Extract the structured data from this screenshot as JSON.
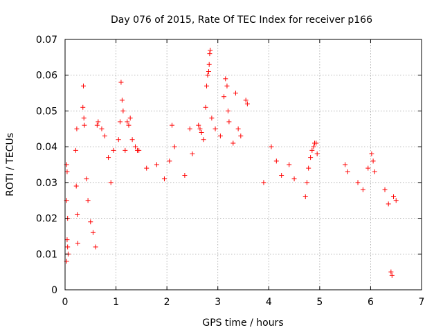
{
  "chart_data": {
    "type": "scatter",
    "title": "Day 076 of 2015, Rate Of TEC Index for receiver p166",
    "xlabel": "GPS time / hours",
    "ylabel": "ROTI / TECUs",
    "xlim": [
      0,
      7
    ],
    "ylim": [
      0,
      0.07
    ],
    "x_ticks": [
      "0",
      "1",
      "2",
      "3",
      "4",
      "5",
      "6",
      "7"
    ],
    "y_ticks": [
      "0",
      "0.01",
      "0.02",
      "0.03",
      "0.04",
      "0.05",
      "0.06",
      "0.07"
    ],
    "grid": true,
    "marker": "+",
    "color": "#ff0000",
    "series": [
      {
        "name": "ROTI",
        "points": [
          [
            0.03,
            0.035
          ],
          [
            0.04,
            0.033
          ],
          [
            0.03,
            0.025
          ],
          [
            0.05,
            0.02
          ],
          [
            0.04,
            0.014
          ],
          [
            0.05,
            0.012
          ],
          [
            0.03,
            0.008
          ],
          [
            0.06,
            0.01
          ],
          [
            0.21,
            0.039
          ],
          [
            0.23,
            0.045
          ],
          [
            0.22,
            0.029
          ],
          [
            0.24,
            0.021
          ],
          [
            0.25,
            0.013
          ],
          [
            0.36,
            0.057
          ],
          [
            0.35,
            0.051
          ],
          [
            0.38,
            0.046
          ],
          [
            0.37,
            0.048
          ],
          [
            0.42,
            0.031
          ],
          [
            0.45,
            0.025
          ],
          [
            0.5,
            0.019
          ],
          [
            0.55,
            0.016
          ],
          [
            0.6,
            0.012
          ],
          [
            0.63,
            0.046
          ],
          [
            0.65,
            0.047
          ],
          [
            0.72,
            0.045
          ],
          [
            0.78,
            0.043
          ],
          [
            0.85,
            0.037
          ],
          [
            0.9,
            0.03
          ],
          [
            0.95,
            0.039
          ],
          [
            1.05,
            0.042
          ],
          [
            1.08,
            0.047
          ],
          [
            1.1,
            0.058
          ],
          [
            1.12,
            0.053
          ],
          [
            1.14,
            0.05
          ],
          [
            1.18,
            0.039
          ],
          [
            1.22,
            0.047
          ],
          [
            1.25,
            0.046
          ],
          [
            1.28,
            0.048
          ],
          [
            1.32,
            0.042
          ],
          [
            1.38,
            0.04
          ],
          [
            1.42,
            0.039
          ],
          [
            1.45,
            0.039
          ],
          [
            1.6,
            0.034
          ],
          [
            1.8,
            0.035
          ],
          [
            1.95,
            0.031
          ],
          [
            2.05,
            0.036
          ],
          [
            2.1,
            0.046
          ],
          [
            2.15,
            0.04
          ],
          [
            2.35,
            0.032
          ],
          [
            2.45,
            0.045
          ],
          [
            2.5,
            0.038
          ],
          [
            2.62,
            0.046
          ],
          [
            2.65,
            0.045
          ],
          [
            2.68,
            0.044
          ],
          [
            2.72,
            0.042
          ],
          [
            2.78,
            0.057
          ],
          [
            2.8,
            0.06
          ],
          [
            2.82,
            0.061
          ],
          [
            2.84,
            0.066
          ],
          [
            2.85,
            0.067
          ],
          [
            2.83,
            0.063
          ],
          [
            2.76,
            0.051
          ],
          [
            2.88,
            0.048
          ],
          [
            2.95,
            0.045
          ],
          [
            3.05,
            0.043
          ],
          [
            3.12,
            0.054
          ],
          [
            3.15,
            0.059
          ],
          [
            3.18,
            0.057
          ],
          [
            3.2,
            0.05
          ],
          [
            3.22,
            0.047
          ],
          [
            3.3,
            0.041
          ],
          [
            3.35,
            0.055
          ],
          [
            3.4,
            0.045
          ],
          [
            3.45,
            0.043
          ],
          [
            3.55,
            0.053
          ],
          [
            3.58,
            0.052
          ],
          [
            3.9,
            0.03
          ],
          [
            4.05,
            0.04
          ],
          [
            4.15,
            0.036
          ],
          [
            4.25,
            0.032
          ],
          [
            4.4,
            0.035
          ],
          [
            4.5,
            0.031
          ],
          [
            4.72,
            0.026
          ],
          [
            4.75,
            0.03
          ],
          [
            4.78,
            0.034
          ],
          [
            4.82,
            0.037
          ],
          [
            4.85,
            0.039
          ],
          [
            4.88,
            0.04
          ],
          [
            4.9,
            0.041
          ],
          [
            4.93,
            0.041
          ],
          [
            4.95,
            0.038
          ],
          [
            5.5,
            0.035
          ],
          [
            5.55,
            0.033
          ],
          [
            5.75,
            0.03
          ],
          [
            5.85,
            0.028
          ],
          [
            5.95,
            0.034
          ],
          [
            6.02,
            0.038
          ],
          [
            6.05,
            0.036
          ],
          [
            6.08,
            0.033
          ],
          [
            6.28,
            0.028
          ],
          [
            6.35,
            0.024
          ],
          [
            6.45,
            0.026
          ],
          [
            6.5,
            0.025
          ],
          [
            6.4,
            0.005
          ],
          [
            6.42,
            0.004
          ]
        ]
      }
    ]
  }
}
